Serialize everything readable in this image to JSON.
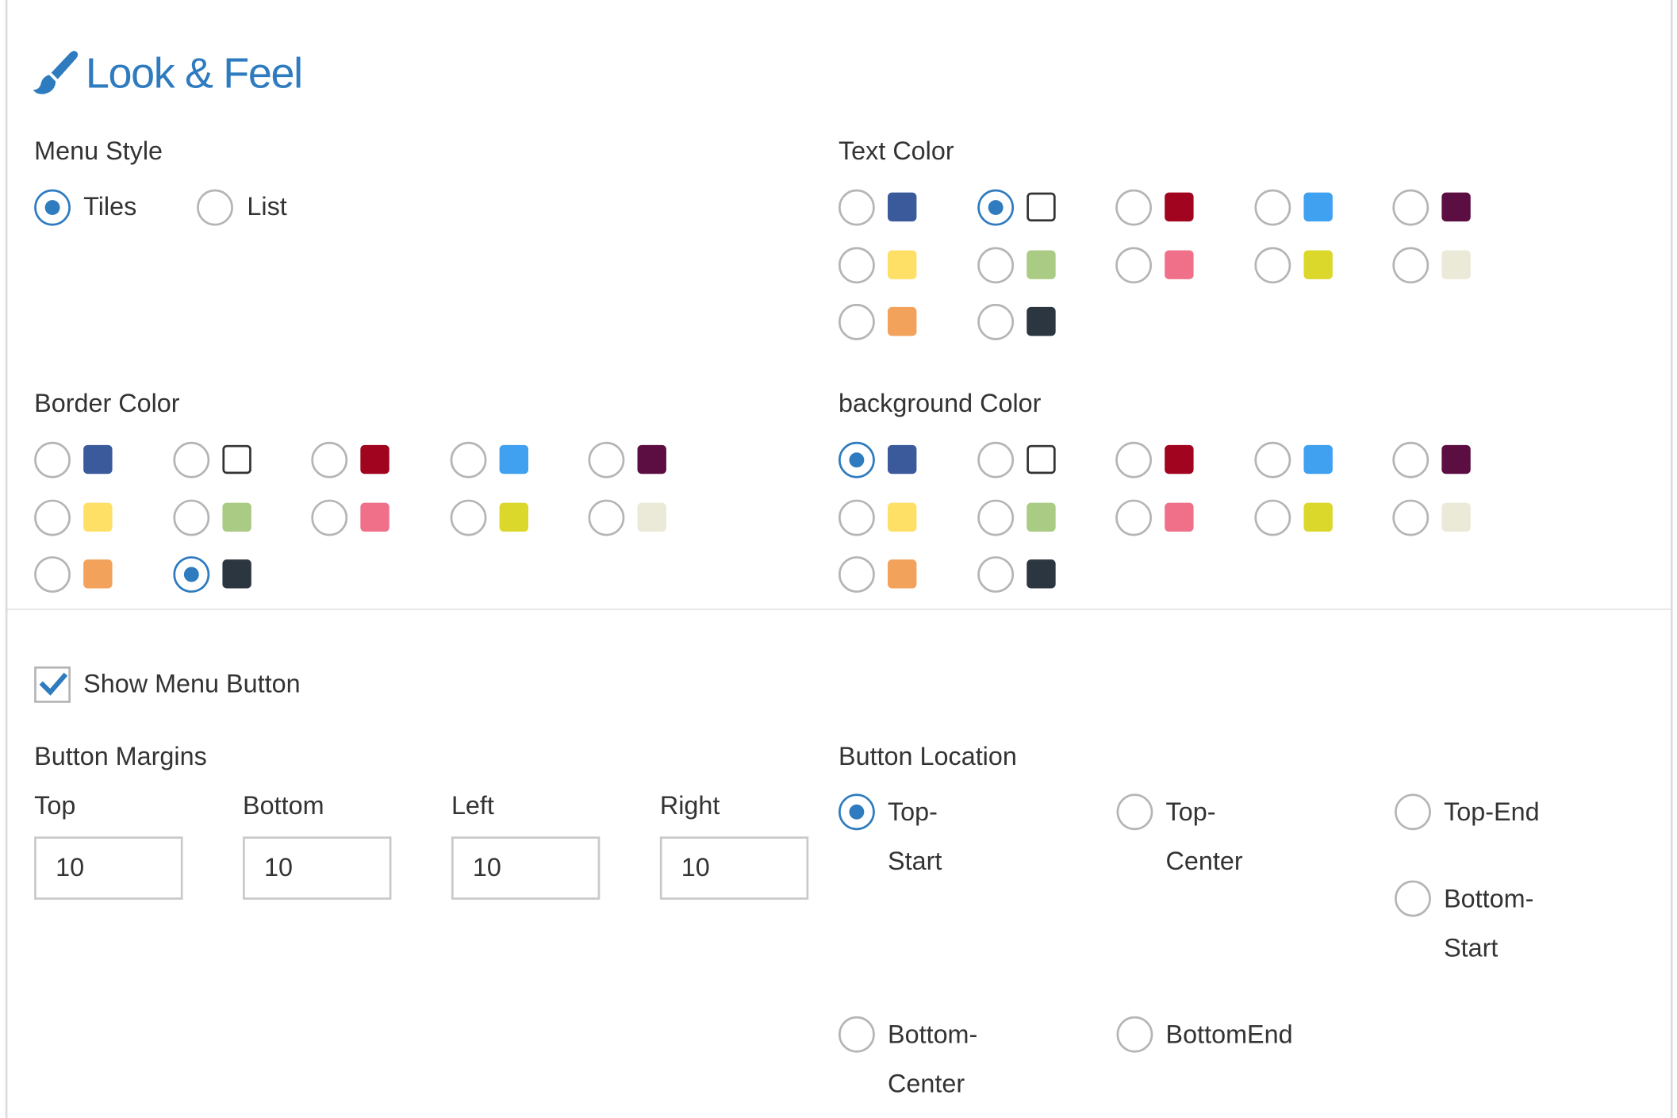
{
  "section": {
    "title": "Look & Feel",
    "icon": "paint-brush-icon"
  },
  "menu_style": {
    "label": "Menu Style",
    "options": [
      {
        "label": "Tiles",
        "checked": true
      },
      {
        "label": "List",
        "checked": false
      }
    ]
  },
  "palette": [
    "#3a5a9b",
    "#ffffff",
    "#a0041e",
    "#3fa1f0",
    "#5c0d42",
    "#ffe066",
    "#aacb84",
    "#f0708a",
    "#dcd72b",
    "#ebead8",
    "#f2a25b",
    "#2b3641"
  ],
  "text_color": {
    "label": "Text Color",
    "selected_index": 1
  },
  "border_color": {
    "label": "Border Color",
    "selected_index": 11
  },
  "background_color": {
    "label": "background Color",
    "selected_index": 0
  },
  "show_menu_button": {
    "label": "Show Menu Button",
    "checked": true
  },
  "button_margins": {
    "label": "Button Margins",
    "fields": [
      {
        "label": "Top",
        "value": "10"
      },
      {
        "label": "Bottom",
        "value": "10"
      },
      {
        "label": "Left",
        "value": "10"
      },
      {
        "label": "Right",
        "value": "10"
      }
    ]
  },
  "button_location": {
    "label": "Button Location",
    "options": [
      {
        "line1": "Top-",
        "line2": "Start",
        "checked": true
      },
      {
        "line1": "Top-",
        "line2": "Center",
        "checked": false
      },
      {
        "line1": "Top-End",
        "line2": "",
        "checked": false
      },
      {
        "line1": "Bottom-",
        "line2": "Start",
        "checked": false
      },
      {
        "line1": "Bottom-",
        "line2": "Center",
        "checked": false
      },
      {
        "line1": "BottomEnd",
        "line2": "",
        "checked": false
      }
    ]
  }
}
